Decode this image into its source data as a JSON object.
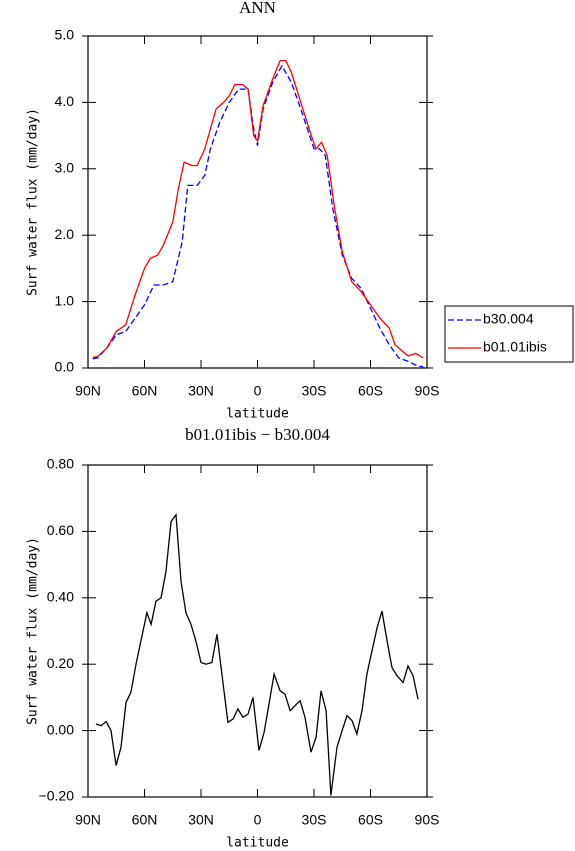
{
  "chart_data": [
    {
      "type": "line",
      "title": "ANN",
      "xlabel": "latitude",
      "ylabel": "Surf water flux (mm/day)",
      "xlim": [
        90,
        -90
      ],
      "xticks": [
        {
          "value": 90,
          "label": "90N"
        },
        {
          "value": 60,
          "label": "60N"
        },
        {
          "value": 30,
          "label": "30N"
        },
        0,
        {
          "value": -30,
          "label": "30S"
        },
        {
          "value": -60,
          "label": "60S"
        },
        {
          "value": -90,
          "label": "90S"
        }
      ],
      "ylim": [
        0,
        5
      ],
      "yticks": [
        {
          "value": 0,
          "label": "0.0"
        },
        {
          "value": 1,
          "label": "1.0"
        },
        {
          "value": 2,
          "label": "2.0"
        },
        {
          "value": 3,
          "label": "3.0"
        },
        {
          "value": 4,
          "label": "4.0"
        },
        {
          "value": 5,
          "label": "5.0"
        }
      ],
      "legend": "outside-right",
      "series": [
        {
          "name": "b30.004",
          "color": "#0000ff",
          "dash": true,
          "x": [
            87.5,
            85,
            80,
            75,
            70,
            65,
            60,
            55,
            50,
            45,
            40,
            37,
            32,
            28,
            25,
            20,
            15,
            10,
            5,
            2,
            0,
            -3,
            -8,
            -13,
            -18,
            -23,
            -30,
            -33,
            -36,
            -40,
            -45,
            -50,
            -55,
            -60,
            -65,
            -70,
            -75,
            -80,
            -85,
            -88
          ],
          "values": [
            0.14,
            0.15,
            0.3,
            0.5,
            0.55,
            0.75,
            0.95,
            1.25,
            1.25,
            1.3,
            1.9,
            2.75,
            2.75,
            2.9,
            3.3,
            3.7,
            4.0,
            4.2,
            4.2,
            3.6,
            3.35,
            3.9,
            4.3,
            4.55,
            4.3,
            3.9,
            3.3,
            3.3,
            3.2,
            2.4,
            1.7,
            1.35,
            1.2,
            0.9,
            0.6,
            0.35,
            0.15,
            0.1,
            0.03,
            0.02
          ]
        },
        {
          "name": "b01.01ibis",
          "color": "#ff0000",
          "dash": false,
          "x": [
            87.5,
            85,
            80,
            75,
            70,
            65,
            60,
            57,
            53,
            50,
            45,
            42,
            39,
            35,
            32,
            28,
            25,
            22,
            18,
            15,
            12,
            8,
            5,
            2,
            0,
            -3,
            -8,
            -12,
            -15,
            -18,
            -23,
            -28,
            -31,
            -34,
            -37,
            -41,
            -45,
            -50,
            -55,
            -60,
            -65,
            -70,
            -73,
            -77,
            -80,
            -84,
            -88
          ],
          "values": [
            0.16,
            0.17,
            0.3,
            0.55,
            0.65,
            1.1,
            1.5,
            1.65,
            1.7,
            1.85,
            2.2,
            2.7,
            3.1,
            3.05,
            3.05,
            3.3,
            3.6,
            3.9,
            4.0,
            4.1,
            4.27,
            4.27,
            4.2,
            3.5,
            3.42,
            3.95,
            4.35,
            4.63,
            4.63,
            4.45,
            4.0,
            3.55,
            3.3,
            3.4,
            3.2,
            2.4,
            1.75,
            1.3,
            1.15,
            0.95,
            0.75,
            0.6,
            0.35,
            0.25,
            0.18,
            0.22,
            0.15
          ]
        }
      ]
    },
    {
      "type": "line",
      "title": "b01.01ibis − b30.004",
      "xlabel": "latitude",
      "ylabel": "Surf water flux (mm/day)",
      "xlim": [
        90,
        -90
      ],
      "xticks": [
        {
          "value": 90,
          "label": "90N"
        },
        {
          "value": 60,
          "label": "60N"
        },
        {
          "value": 30,
          "label": "30N"
        },
        0,
        {
          "value": -30,
          "label": "30S"
        },
        {
          "value": -60,
          "label": "60S"
        },
        {
          "value": -90,
          "label": "90S"
        }
      ],
      "ylim": [
        -0.2,
        0.8
      ],
      "yticks": [
        {
          "value": -0.2,
          "label": "−0.20"
        },
        {
          "value": 0,
          "label": "0.00"
        },
        {
          "value": 0.2,
          "label": "0.20"
        },
        {
          "value": 0.4,
          "label": "0.40"
        },
        {
          "value": 0.6,
          "label": "0.60"
        },
        {
          "value": 0.8,
          "label": "0.80"
        }
      ],
      "series": [
        {
          "color": "#000000",
          "dash": false,
          "x": [
            85.8,
            83.1,
            80.4,
            77.8,
            75.1,
            72.5,
            69.8,
            67.2,
            64.5,
            61.9,
            58.7,
            56.5,
            53.9,
            51.2,
            48.6,
            45.9,
            43.3,
            40.6,
            38.0,
            35.3,
            32.7,
            30.0,
            27.3,
            24.2,
            21.5,
            18.9,
            15.7,
            13.0,
            10.4,
            7.7,
            5.0,
            2.4,
            -0.8,
            -3.5,
            -6.1,
            -8.8,
            -12.0,
            -14.6,
            -17.3,
            -19.9,
            -22.6,
            -25.2,
            -28.4,
            -31.1,
            -33.7,
            -36.4,
            -39.0,
            -42.2,
            -44.9,
            -47.5,
            -50.2,
            -52.8,
            -55.5,
            -58.1,
            -60.8,
            -63.5,
            -66.1,
            -68.8,
            -71.4,
            -74.1,
            -77.3,
            -79.9,
            -82.6,
            -85.2
          ],
          "values": [
            0.02,
            0.015,
            0.027,
            0.0,
            -0.105,
            -0.05,
            0.085,
            0.115,
            0.2,
            0.27,
            0.355,
            0.32,
            0.39,
            0.4,
            0.48,
            0.63,
            0.65,
            0.45,
            0.355,
            0.32,
            0.27,
            0.205,
            0.2,
            0.205,
            0.29,
            0.17,
            0.025,
            0.035,
            0.065,
            0.04,
            0.05,
            0.1,
            -0.06,
            -0.005,
            0.08,
            0.17,
            0.12,
            0.11,
            0.06,
            0.075,
            0.09,
            0.04,
            -0.065,
            -0.02,
            0.12,
            0.06,
            -0.195,
            -0.05,
            0.0,
            0.045,
            0.03,
            -0.01,
            0.06,
            0.17,
            0.24,
            0.31,
            0.36,
            0.27,
            0.19,
            0.165,
            0.145,
            0.195,
            0.165,
            0.095
          ]
        }
      ]
    }
  ]
}
